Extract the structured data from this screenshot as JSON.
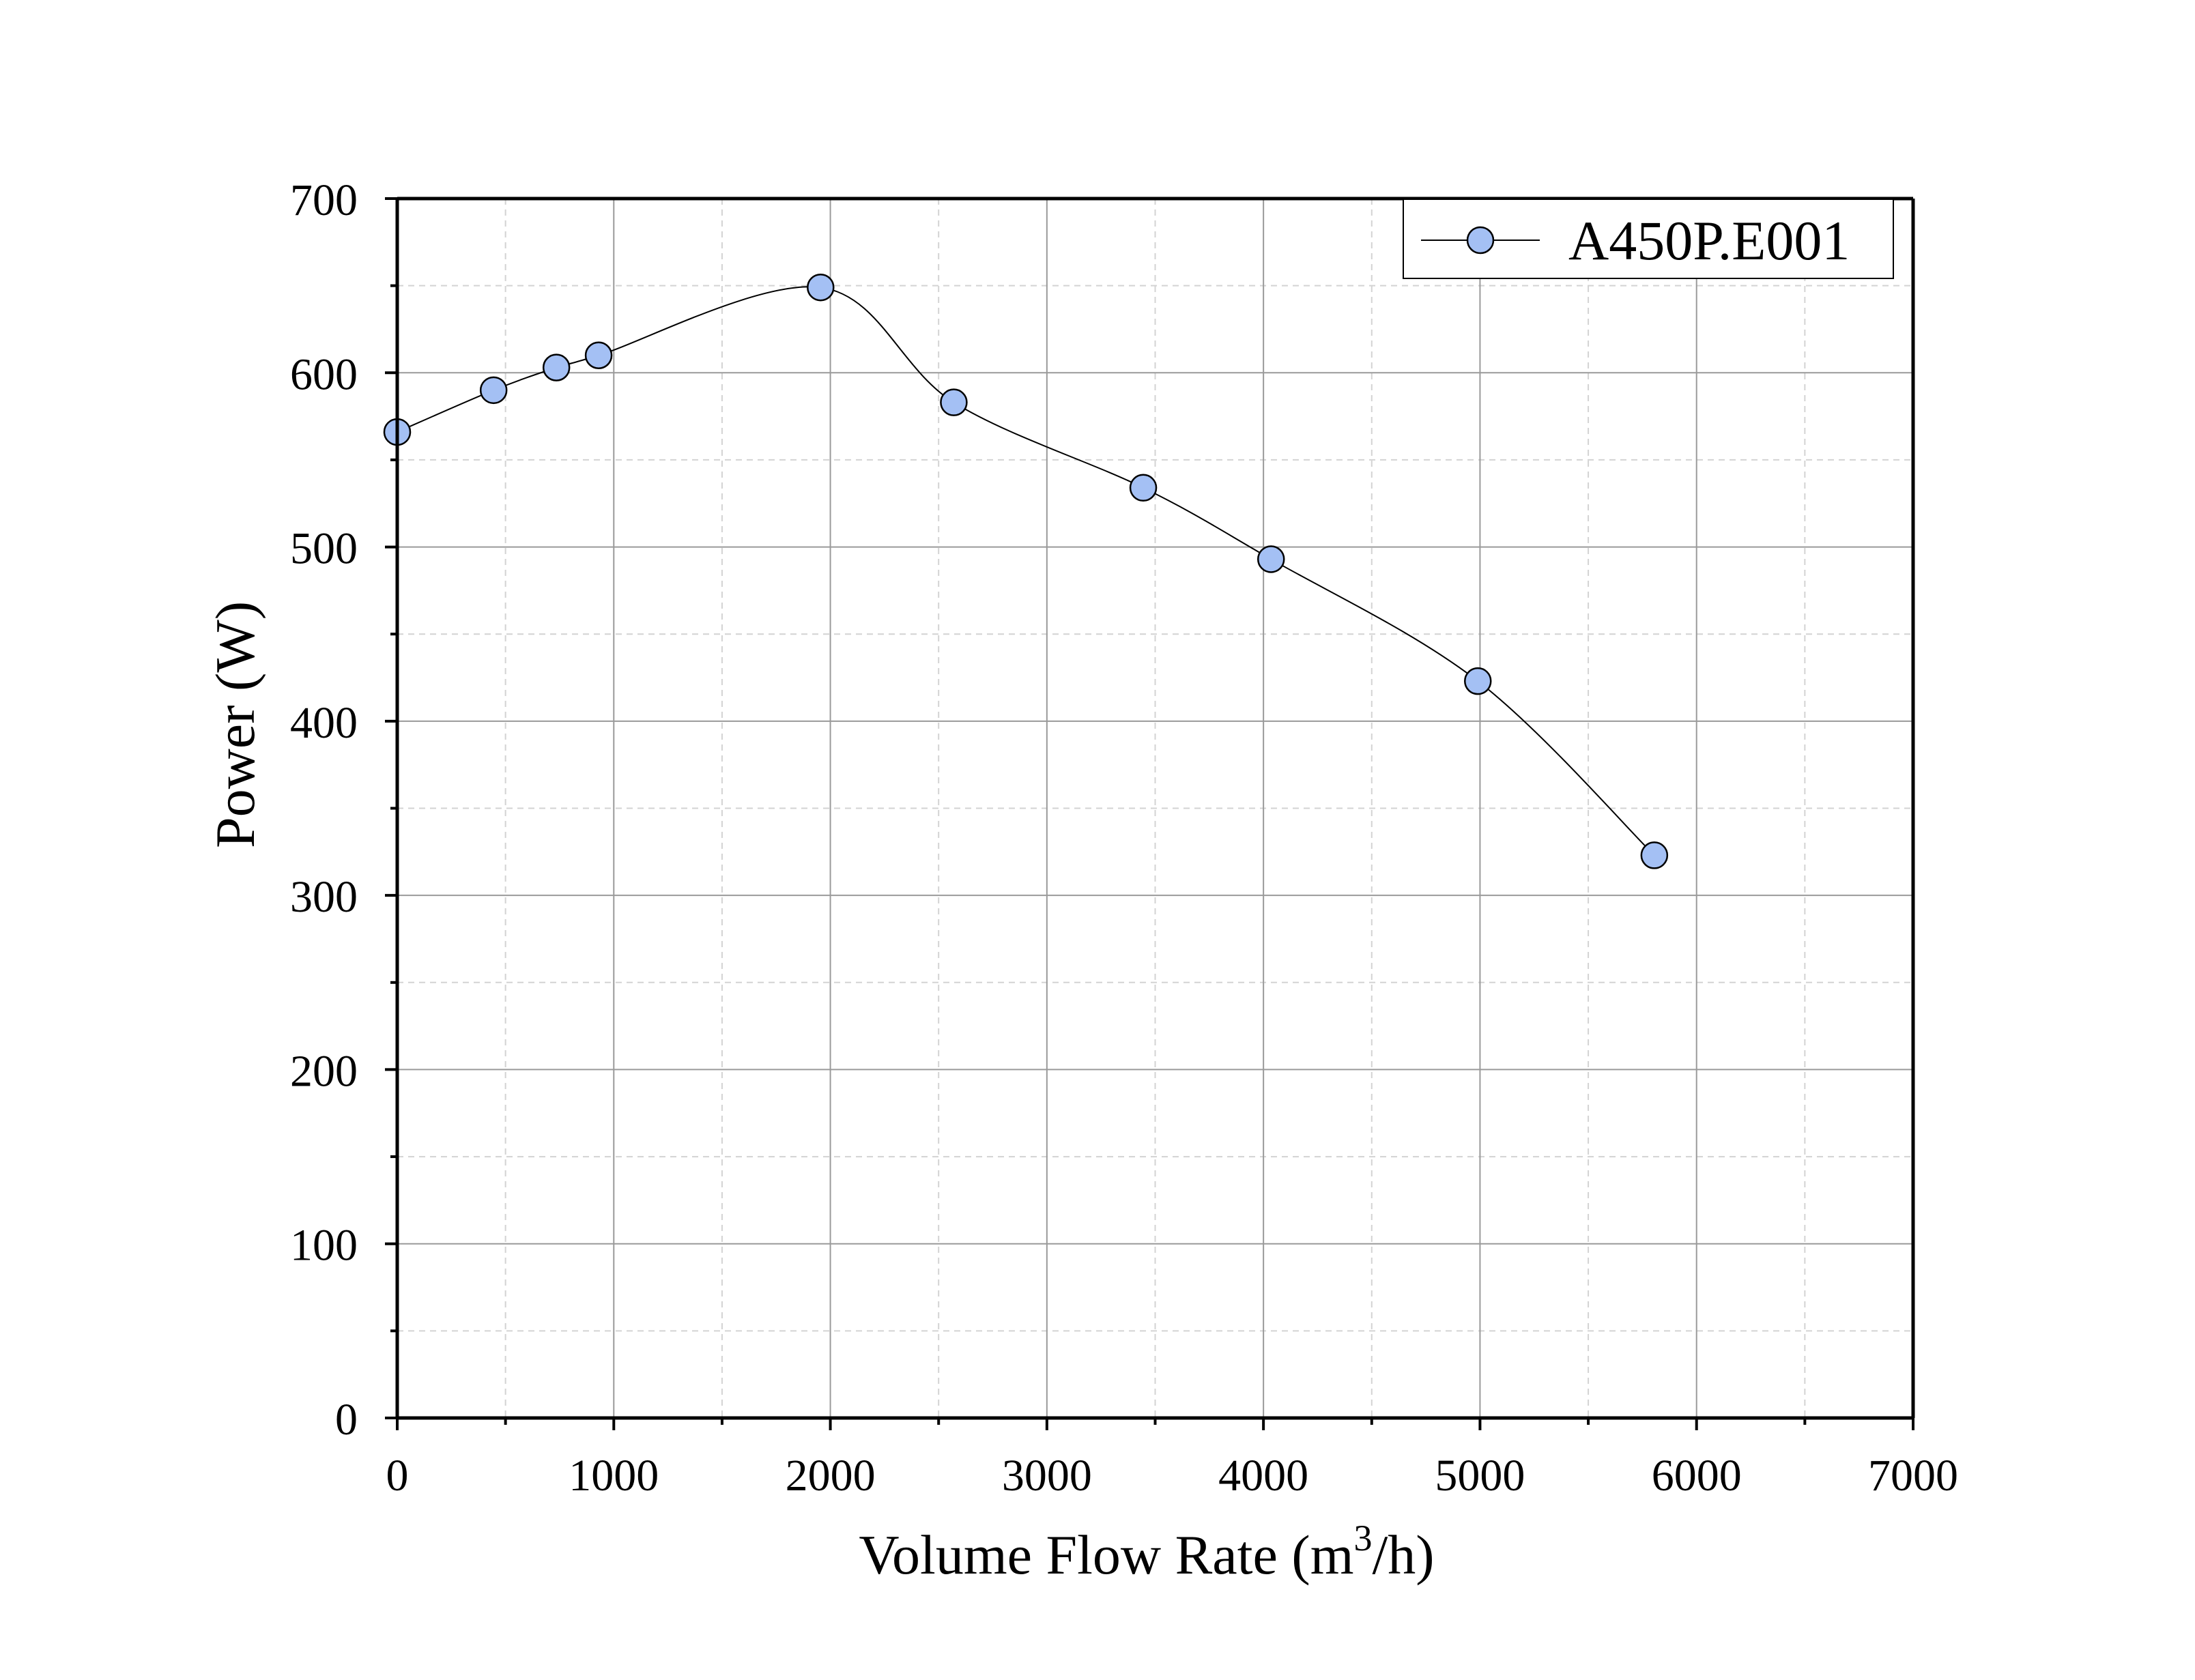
{
  "chart_data": {
    "type": "line",
    "title": "",
    "xlabel_main": "Volume Flow Rate (m",
    "xlabel_sup": "3",
    "xlabel_tail": "/h)",
    "ylabel": "Power (W)",
    "xlim": [
      0,
      7000
    ],
    "ylim": [
      0,
      700
    ],
    "x_major_ticks": [
      0,
      1000,
      2000,
      3000,
      4000,
      5000,
      6000,
      7000
    ],
    "x_tick_labels": [
      "0",
      "1000",
      "2000",
      "3000",
      "4000",
      "5000",
      "6000",
      "7000"
    ],
    "x_minor_ticks": [
      500,
      1500,
      2500,
      3500,
      4500,
      5500,
      6500
    ],
    "y_major_ticks": [
      0,
      100,
      200,
      300,
      400,
      500,
      600,
      700
    ],
    "y_tick_labels": [
      "0",
      "100",
      "200",
      "300",
      "400",
      "500",
      "600",
      "700"
    ],
    "y_minor_ticks": [
      50,
      150,
      250,
      350,
      450,
      550,
      650
    ],
    "grid": true,
    "legend_position": "top-right",
    "series": [
      {
        "name": "A450P.E001",
        "marker": "circle",
        "marker_color": "#a4c0f4",
        "line_color": "#000000",
        "x": [
          0,
          445,
          735,
          930,
          1955,
          2570,
          3445,
          4035,
          4990,
          5805
        ],
        "y": [
          566,
          590,
          603,
          610,
          649,
          583,
          534,
          493,
          423,
          323
        ]
      }
    ]
  }
}
